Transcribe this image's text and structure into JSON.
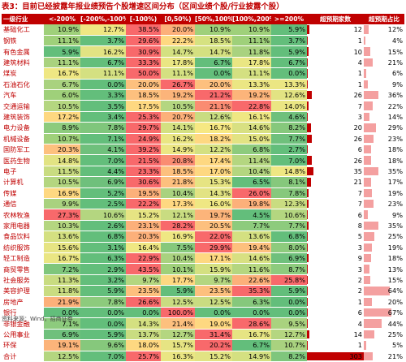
{
  "title": "表3：目前已经披露年报业绩预告个股增速区间分布（区间业绩个股/行业披露个股）",
  "headers": [
    "一级行业",
    "<-200%",
    "[-200%,-100%)",
    "[-100%)",
    "[0,50%)",
    "[50%,100%)",
    "[100%,200%)",
    ">=200%",
    "超预期家数",
    "超预期占比"
  ],
  "rows": [
    {
      "name": "基础化工",
      "vals": [
        "10.9%",
        "12.7%",
        "38.5%",
        "20.0%",
        "10.9%",
        "10.9%",
        "5.9%"
      ],
      "count": "12",
      "share": "12%",
      "share_pct": 12,
      "colors": [
        "#9fd07a",
        "#efe783",
        "#f8696b",
        "#fcb07a",
        "#9fd07a",
        "#9fd07a",
        "#63be7b"
      ]
    },
    {
      "name": "钢铁",
      "vals": [
        "11.1%",
        "3.7%",
        "29.6%",
        "22.2%",
        "18.5%",
        "11.1%",
        "3.7%"
      ],
      "count": "1",
      "share": "4%",
      "share_pct": 4,
      "colors": [
        "#9fd07a",
        "#63be7b",
        "#f8696b",
        "#fed881",
        "#d6e281",
        "#9fd07a",
        "#63be7b"
      ]
    },
    {
      "name": "有色金属",
      "vals": [
        "5.9%",
        "16.2%",
        "30.9%",
        "14.7%",
        "14.7%",
        "11.8%",
        "5.9%"
      ],
      "count": "10",
      "share": "15%",
      "share_pct": 15,
      "colors": [
        "#63be7b",
        "#e2e383",
        "#f8696b",
        "#d4e081",
        "#d4e081",
        "#a9d27f",
        "#63be7b"
      ]
    },
    {
      "name": "建筑材料",
      "vals": [
        "11.1%",
        "6.7%",
        "33.3%",
        "17.8%",
        "6.7%",
        "17.8%",
        "6.7%"
      ],
      "count": "4",
      "share": "21%",
      "share_pct": 21,
      "colors": [
        "#a9d27f",
        "#63be7b",
        "#f8696b",
        "#eae683",
        "#63be7b",
        "#eae683",
        "#63be7b"
      ]
    },
    {
      "name": "煤炭",
      "vals": [
        "16.7%",
        "11.1%",
        "50.0%",
        "11.1%",
        "0.0%",
        "11.1%",
        "0.0%"
      ],
      "count": "1",
      "share": "6%",
      "share_pct": 6,
      "colors": [
        "#efe783",
        "#d4e081",
        "#f8696b",
        "#d4e081",
        "#63be7b",
        "#d4e081",
        "#63be7b"
      ]
    },
    {
      "name": "石油石化",
      "vals": [
        "6.7%",
        "0.0%",
        "20.0%",
        "26.7%",
        "20.0%",
        "13.3%",
        "13.3%"
      ],
      "count": "1",
      "share": "9%",
      "share_pct": 9,
      "colors": [
        "#a9d27f",
        "#63be7b",
        "#fdc07e",
        "#f8696b",
        "#fdc07e",
        "#ebe683",
        "#ebe683"
      ]
    },
    {
      "name": "汽车",
      "vals": [
        "6.0%",
        "3.3%",
        "18.5%",
        "19.2%",
        "21.2%",
        "19.2%",
        "12.6%"
      ],
      "count": "26",
      "share": "36%",
      "share_pct": 36,
      "colors": [
        "#9fd07a",
        "#63be7b",
        "#fdc07e",
        "#fcb47a",
        "#f8696b",
        "#fcb47a",
        "#e2e383"
      ]
    },
    {
      "name": "交通运输",
      "vals": [
        "10.5%",
        "3.5%",
        "17.5%",
        "10.5%",
        "21.1%",
        "22.8%",
        "14.0%"
      ],
      "count": "7",
      "share": "22%",
      "share_pct": 22,
      "colors": [
        "#b4d680",
        "#63be7b",
        "#fed881",
        "#b4d680",
        "#fa8c72",
        "#f8696b",
        "#ebe683"
      ]
    },
    {
      "name": "建筑装饰",
      "vals": [
        "17.2%",
        "3.4%",
        "25.3%",
        "20.7%",
        "12.6%",
        "16.1%",
        "4.6%"
      ],
      "count": "3",
      "share": "14%",
      "share_pct": 14,
      "colors": [
        "#fed881",
        "#63be7b",
        "#f8696b",
        "#fcb07a",
        "#c9dc81",
        "#efe783",
        "#6fc07c"
      ]
    },
    {
      "name": "电力设备",
      "vals": [
        "8.9%",
        "7.8%",
        "29.7%",
        "14.1%",
        "16.7%",
        "14.6%",
        "8.2%"
      ],
      "count": "20",
      "share": "29%",
      "share_pct": 29,
      "colors": [
        "#8dcb7d",
        "#7fc67c",
        "#f8696b",
        "#d4e081",
        "#f6e883",
        "#d8e082",
        "#86c87c"
      ]
    },
    {
      "name": "机械设备",
      "vals": [
        "10.7%",
        "7.1%",
        "24.9%",
        "16.2%",
        "18.2%",
        "15.0%",
        "7.7%"
      ],
      "count": "26",
      "share": "23%",
      "share_pct": 23,
      "colors": [
        "#9fd07a",
        "#63be7b",
        "#f8696b",
        "#eae683",
        "#fed881",
        "#e2e383",
        "#6fc07c"
      ]
    },
    {
      "name": "国防军工",
      "vals": [
        "20.3%",
        "4.1%",
        "39.2%",
        "14.9%",
        "12.2%",
        "6.8%",
        "2.7%"
      ],
      "count": "6",
      "share": "18%",
      "share_pct": 18,
      "colors": [
        "#fdc07e",
        "#6fc07c",
        "#f8696b",
        "#ebe683",
        "#d4e081",
        "#8dcb7d",
        "#63be7b"
      ]
    },
    {
      "name": "医药生物",
      "vals": [
        "14.8%",
        "7.0%",
        "21.5%",
        "20.8%",
        "17.4%",
        "11.4%",
        "7.0%"
      ],
      "count": "26",
      "share": "18%",
      "share_pct": 18,
      "colors": [
        "#e2e383",
        "#63be7b",
        "#f8696b",
        "#fa8c72",
        "#fed881",
        "#b4d680",
        "#63be7b"
      ]
    },
    {
      "name": "电子",
      "vals": [
        "11.5%",
        "4.4%",
        "23.3%",
        "18.5%",
        "17.0%",
        "10.4%",
        "14.8%"
      ],
      "count": "35",
      "share": "35%",
      "share_pct": 35,
      "colors": [
        "#c9dc81",
        "#63be7b",
        "#f8696b",
        "#fdc07e",
        "#fed881",
        "#b4d680",
        "#efe783"
      ]
    },
    {
      "name": "计算机",
      "vals": [
        "10.5%",
        "6.9%",
        "30.6%",
        "21.8%",
        "15.3%",
        "6.5%",
        "8.1%"
      ],
      "count": "21",
      "share": "17%",
      "share_pct": 17,
      "colors": [
        "#b4d680",
        "#6fc07c",
        "#f8696b",
        "#fdc07e",
        "#e6e483",
        "#63be7b",
        "#86c87c"
      ]
    },
    {
      "name": "传媒",
      "vals": [
        "16.9%",
        "5.2%",
        "19.5%",
        "10.4%",
        "14.3%",
        "26.0%",
        "7.8%"
      ],
      "count": "7",
      "share": "19%",
      "share_pct": 19,
      "colors": [
        "#fed881",
        "#63be7b",
        "#fcb07a",
        "#a9d27f",
        "#e2e383",
        "#f8696b",
        "#86c87c"
      ]
    },
    {
      "name": "通信",
      "vals": [
        "9.9%",
        "2.5%",
        "22.2%",
        "17.3%",
        "16.0%",
        "19.8%",
        "12.3%"
      ],
      "count": "7",
      "share": "23%",
      "share_pct": 23,
      "colors": [
        "#a9d27f",
        "#63be7b",
        "#f8696b",
        "#fed881",
        "#efe783",
        "#fcb07a",
        "#c9dc81"
      ]
    },
    {
      "name": "农林牧渔",
      "vals": [
        "27.3%",
        "10.6%",
        "15.2%",
        "12.1%",
        "19.7%",
        "4.5%",
        "10.6%"
      ],
      "count": "6",
      "share": "9%",
      "share_pct": 9,
      "colors": [
        "#f8696b",
        "#b4d680",
        "#e6e483",
        "#c9dc81",
        "#fcb47a",
        "#63be7b",
        "#b4d680"
      ]
    },
    {
      "name": "家用电器",
      "vals": [
        "10.3%",
        "2.6%",
        "23.1%",
        "28.2%",
        "20.5%",
        "7.7%",
        "7.7%"
      ],
      "count": "8",
      "share": "35%",
      "share_pct": 35,
      "colors": [
        "#b4d680",
        "#63be7b",
        "#fcb07a",
        "#f8696b",
        "#fdc07e",
        "#8dcb7d",
        "#8dcb7d"
      ]
    },
    {
      "name": "食品饮料",
      "vals": [
        "13.6%",
        "6.8%",
        "20.3%",
        "16.9%",
        "22.0%",
        "13.6%",
        "6.8%"
      ],
      "count": "5",
      "share": "25%",
      "share_pct": 25,
      "colors": [
        "#d4e081",
        "#63be7b",
        "#fcb07a",
        "#efe783",
        "#f8696b",
        "#d4e081",
        "#63be7b"
      ]
    },
    {
      "name": "纺织服饰",
      "vals": [
        "15.6%",
        "3.1%",
        "16.4%",
        "7.5%",
        "29.9%",
        "19.4%",
        "8.0%"
      ],
      "count": "3",
      "share": "19%",
      "share_pct": 19,
      "colors": [
        "#e6e483",
        "#63be7b",
        "#efe783",
        "#86c87c",
        "#f8696b",
        "#fdc07e",
        "#8dcb7d"
      ]
    },
    {
      "name": "轻工制造",
      "vals": [
        "16.7%",
        "6.3%",
        "22.9%",
        "10.4%",
        "17.1%",
        "14.6%",
        "6.9%"
      ],
      "count": "9",
      "share": "18%",
      "share_pct": 18,
      "colors": [
        "#eae683",
        "#63be7b",
        "#f8696b",
        "#a9d27f",
        "#fed881",
        "#d8e082",
        "#6fc07c"
      ]
    },
    {
      "name": "商贸零售",
      "vals": [
        "7.2%",
        "2.9%",
        "43.5%",
        "10.1%",
        "15.9%",
        "11.6%",
        "8.7%"
      ],
      "count": "3",
      "share": "13%",
      "share_pct": 13,
      "colors": [
        "#7fc67c",
        "#63be7b",
        "#f8696b",
        "#9fd07a",
        "#d4e081",
        "#b4d680",
        "#8dcb7d"
      ]
    },
    {
      "name": "社会服务",
      "vals": [
        "11.3%",
        "3.2%",
        "9.7%",
        "17.7%",
        "9.7%",
        "22.6%",
        "25.8%"
      ],
      "count": "2",
      "share": "15%",
      "share_pct": 15,
      "colors": [
        "#c9dc81",
        "#63be7b",
        "#b4d680",
        "#fed881",
        "#b4d680",
        "#fcb07a",
        "#f8696b"
      ]
    },
    {
      "name": "美容护理",
      "vals": [
        "11.8%",
        "5.9%",
        "23.5%",
        "5.9%",
        "23.5%",
        "35.3%",
        "5.9%"
      ],
      "count": "2",
      "share": "64%",
      "share_pct": 64,
      "colors": [
        "#c9dc81",
        "#63be7b",
        "#fdc07e",
        "#63be7b",
        "#fdc07e",
        "#f8696b",
        "#63be7b"
      ]
    },
    {
      "name": "房地产",
      "vals": [
        "21.9%",
        "7.8%",
        "26.6%",
        "12.5%",
        "12.5%",
        "6.3%",
        "0.0%"
      ],
      "count": "1",
      "share": "20%",
      "share_pct": 20,
      "colors": [
        "#fcb07a",
        "#8dcb7d",
        "#f8696b",
        "#c9dc81",
        "#c9dc81",
        "#86c87c",
        "#63be7b"
      ]
    },
    {
      "name": "银行",
      "vals": [
        "0.0%",
        "0.0%",
        "0.0%",
        "100.0%",
        "0.0%",
        "0.0%",
        "0.0%"
      ],
      "count": "6",
      "share": "67%",
      "share_pct": 67,
      "colors": [
        "#63be7b",
        "#63be7b",
        "#63be7b",
        "#f8696b",
        "#63be7b",
        "#63be7b",
        "#63be7b"
      ]
    },
    {
      "name": "非银金融",
      "vals": [
        "7.1%",
        "0.0%",
        "14.3%",
        "21.4%",
        "19.0%",
        "28.6%",
        "9.5%"
      ],
      "count": "4",
      "share": "44%",
      "share_pct": 44,
      "colors": [
        "#8dcb7d",
        "#63be7b",
        "#d4e081",
        "#fdc07e",
        "#fed881",
        "#f8696b",
        "#a9d27f"
      ]
    },
    {
      "name": "公用事业",
      "vals": [
        "6.9%",
        "5.9%",
        "13.7%",
        "12.7%",
        "31.4%",
        "16.7%",
        "12.7%"
      ],
      "count": "14",
      "share": "25%",
      "share_pct": 25,
      "colors": [
        "#6fc07c",
        "#63be7b",
        "#c9dc81",
        "#b4d680",
        "#f8696b",
        "#e6e483",
        "#b4d680"
      ]
    },
    {
      "name": "环保",
      "vals": [
        "19.1%",
        "9.6%",
        "18.0%",
        "15.7%",
        "20.2%",
        "6.7%",
        "10.7%"
      ],
      "count": "1",
      "share": "5%",
      "share_pct": 5,
      "colors": [
        "#fcb47a",
        "#86c87c",
        "#fed881",
        "#e6e483",
        "#f8696b",
        "#63be7b",
        "#a9d27f"
      ]
    },
    {
      "name": "合计",
      "vals": [
        "12.5%",
        "7.0%",
        "25.7%",
        "16.3%",
        "15.2%",
        "14.9%",
        "8.2%"
      ],
      "count": "303",
      "share": "21%",
      "share_pct": 21,
      "colors": [
        "#b4d680",
        "#63be7b",
        "#f8696b",
        "#eae683",
        "#e2e383",
        "#d4e081",
        "#7fc67c"
      ]
    }
  ],
  "max_count": 303,
  "source": "资料来源：Wind，招商证券"
}
